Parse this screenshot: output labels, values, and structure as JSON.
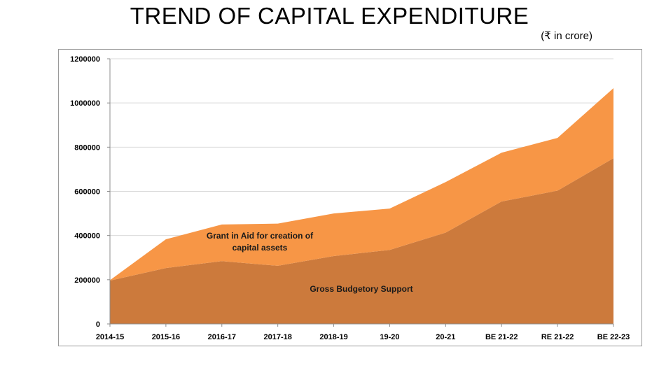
{
  "chart_data": {
    "type": "area",
    "stacked": true,
    "title": "TREND OF CAPITAL EXPENDITURE",
    "unit_note": "(₹ in crore)",
    "xlabel": "",
    "ylabel": "",
    "ylim": [
      0,
      1200000
    ],
    "yticks": [
      0,
      200000,
      400000,
      600000,
      800000,
      1000000,
      1200000
    ],
    "grid": true,
    "categories": [
      "2014-15",
      "2015-16",
      "2016-17",
      "2017-18",
      "2018-19",
      "19-20",
      "20-21",
      "BE 21-22",
      "RE 21-22",
      "BE 22-23"
    ],
    "series": [
      {
        "annotation": "Gross Budgetory Support",
        "color": "#cc7a3c",
        "values": [
          196000,
          253000,
          284000,
          263000,
          307000,
          335000,
          413000,
          554000,
          603000,
          750000
        ]
      },
      {
        "annotation": "Grant in Aid for creation of capital assets",
        "color": "#f79646",
        "values": [
          2000,
          130000,
          166000,
          191000,
          193000,
          187000,
          229000,
          221000,
          239000,
          317000
        ]
      }
    ],
    "annotations": {
      "upper_line1": "Grant in Aid for creation of",
      "upper_line2": "capital assets",
      "lower": "Gross Budgetory Support"
    }
  }
}
